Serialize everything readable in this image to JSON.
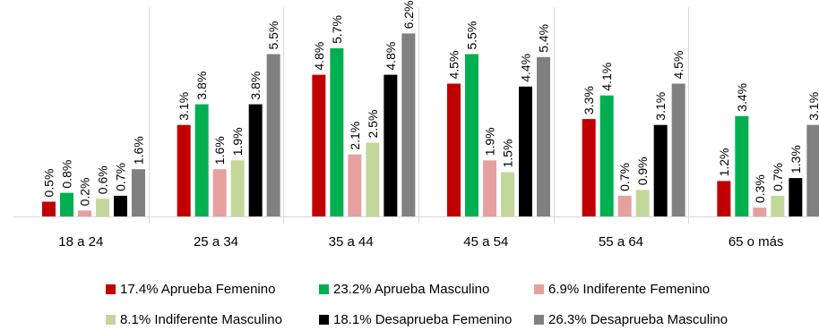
{
  "chart_data": {
    "type": "bar",
    "categories": [
      "18 a 24",
      "25 a 34",
      "35 a 44",
      "45 a 54",
      "55 a 64",
      "65 o más"
    ],
    "series": [
      {
        "name": "17.4% Aprueba Femenino",
        "color": "#C00000",
        "values": [
          0.5,
          3.1,
          4.8,
          4.5,
          3.3,
          1.2
        ]
      },
      {
        "name": "23.2% Aprueba Masculino",
        "color": "#00B050",
        "values": [
          0.8,
          3.8,
          5.7,
          5.5,
          4.1,
          3.4
        ]
      },
      {
        "name": "6.9% Indiferente Femenino",
        "color": "#E6A0A0",
        "values": [
          0.2,
          1.6,
          2.1,
          1.9,
          0.7,
          0.3
        ]
      },
      {
        "name": "8.1% Indiferente Masculino",
        "color": "#C4D79B",
        "values": [
          0.6,
          1.9,
          2.5,
          1.5,
          0.9,
          0.7
        ]
      },
      {
        "name": "18.1% Desaprueba Femenino",
        "color": "#000000",
        "values": [
          0.7,
          3.8,
          4.8,
          4.4,
          3.1,
          1.3
        ]
      },
      {
        "name": "26.3% Desaprueba Masculino",
        "color": "#808080",
        "values": [
          1.6,
          5.5,
          6.2,
          5.4,
          4.5,
          3.1
        ]
      }
    ],
    "value_suffix": "%",
    "title": "",
    "xlabel": "",
    "ylabel": "",
    "ylim": [
      0,
      6.4
    ],
    "grid": false,
    "legend_position": "bottom"
  }
}
